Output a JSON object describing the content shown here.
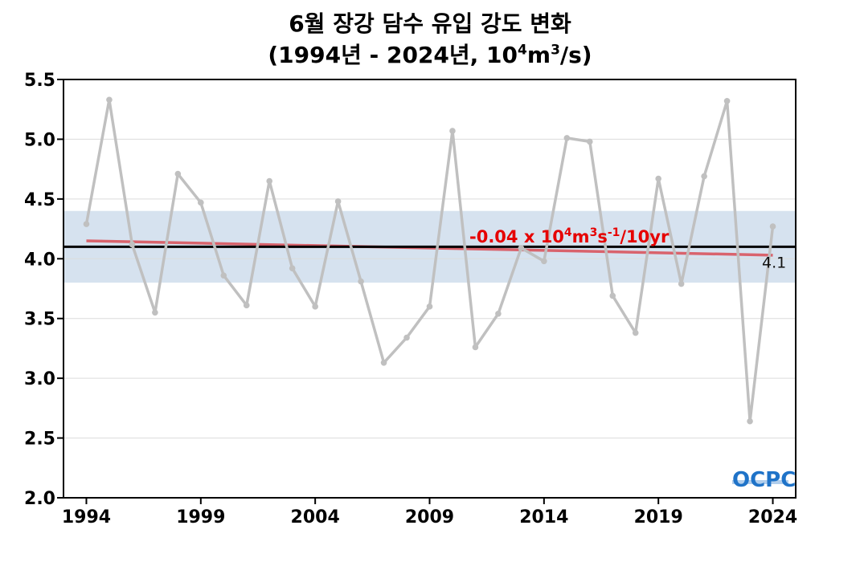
{
  "title": {
    "line1": "6월 장강 담수 유입 강도 변화",
    "line2_base": "(1994년 - 2024년, 10",
    "line2_sup1": "4",
    "line2_mid": "m",
    "line2_sup2": "3",
    "line2_end": "/s)"
  },
  "colors": {
    "series": "#c0c0c0",
    "trend": "#d9636c",
    "mean": "#000000",
    "band": "#d6e2ef",
    "annotation": "#e60000",
    "logo": "#1f73c8"
  },
  "chart_data": {
    "type": "line",
    "x": [
      1994,
      1995,
      1996,
      1997,
      1998,
      1999,
      2000,
      2001,
      2002,
      2003,
      2004,
      2005,
      2006,
      2007,
      2008,
      2009,
      2010,
      2011,
      2012,
      2013,
      2014,
      2015,
      2016,
      2017,
      2018,
      2019,
      2020,
      2021,
      2022,
      2023,
      2024
    ],
    "series": [
      {
        "values": [
          4.29,
          5.33,
          4.12,
          3.55,
          4.71,
          4.47,
          3.86,
          3.61,
          4.65,
          3.92,
          3.6,
          4.48,
          3.81,
          3.13,
          3.34,
          3.6,
          5.07,
          3.26,
          3.54,
          4.09,
          3.98,
          5.01,
          4.98,
          3.69,
          3.38,
          4.67,
          3.79,
          4.69,
          5.32,
          2.64,
          4.27
        ]
      }
    ],
    "trend": {
      "start": [
        1994,
        4.15
      ],
      "end": [
        2024,
        4.03
      ]
    },
    "mean": 4.1,
    "band": [
      3.8,
      4.4
    ],
    "xlim": [
      1993,
      2025
    ],
    "ylim": [
      2.0,
      5.5
    ],
    "xticks": [
      1994,
      1999,
      2004,
      2009,
      2014,
      2019,
      2024
    ],
    "yticks": [
      "2.0",
      "2.5",
      "3.0",
      "3.5",
      "4.0",
      "4.5",
      "5.0",
      "5.5"
    ],
    "mean_label": "4.1",
    "annotation": {
      "prefix": "-0.04 x 10",
      "sup1": "4",
      "mid1": "m",
      "sup2": "3",
      "mid2": "s",
      "sup3": "-1",
      "suffix": "/10yr"
    },
    "grid": "horizontal"
  },
  "logo": {
    "text": "OCPC"
  }
}
